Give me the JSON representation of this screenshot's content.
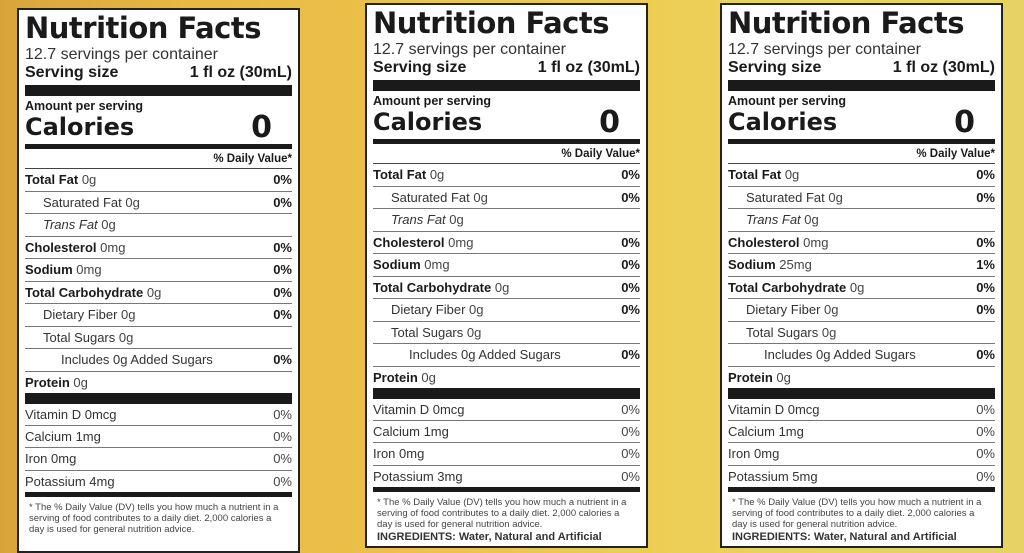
{
  "labels": [
    {
      "title": "Nutrition Facts",
      "servings": "12.7 servings per container",
      "serving_size_label": "Serving size",
      "serving_size_value": "1 fl oz (30mL)",
      "amount_per_serving": "Amount per serving",
      "calories_label": "Calories",
      "calories_value": "0",
      "dv_header": "% Daily Value*",
      "nutrients": [
        {
          "name": "Total Fat",
          "amount": "0g",
          "dv": "0%"
        },
        {
          "name": "Saturated Fat",
          "amount": "0g",
          "dv": "0%"
        },
        {
          "name": "Trans Fat",
          "amount": "0g",
          "dv": ""
        },
        {
          "name": "Cholesterol",
          "amount": "0mg",
          "dv": "0%"
        },
        {
          "name": "Sodium",
          "amount": "0mg",
          "dv": "0%"
        },
        {
          "name": "Total Carbohydrate",
          "amount": "0g",
          "dv": "0%"
        },
        {
          "name": "Dietary Fiber",
          "amount": "0g",
          "dv": "0%"
        },
        {
          "name": "Total Sugars",
          "amount": "0g",
          "dv": ""
        },
        {
          "name": "Includes 0g Added Sugars",
          "amount": "",
          "dv": "0%"
        },
        {
          "name": "Protein",
          "amount": "0g",
          "dv": ""
        }
      ],
      "vitamins": [
        {
          "name": "Vitamin D 0mcg",
          "dv": "0%"
        },
        {
          "name": "Calcium 1mg",
          "dv": "0%"
        },
        {
          "name": "Iron 0mg",
          "dv": "0%"
        },
        {
          "name": "Potassium 4mg",
          "dv": "0%"
        }
      ],
      "footnote": "* The % Daily Value (DV) tells you how much a nutrient in a serving of food contributes to a daily diet. 2,000 calories a day is used for general nutrition advice.",
      "ingredients": ""
    },
    {
      "title": "Nutrition Facts",
      "servings": "12.7 servings per container",
      "serving_size_label": "Serving size",
      "serving_size_value": "1 fl oz (30mL)",
      "amount_per_serving": "Amount per serving",
      "calories_label": "Calories",
      "calories_value": "0",
      "dv_header": "% Daily Value*",
      "nutrients": [
        {
          "name": "Total Fat",
          "amount": "0g",
          "dv": "0%"
        },
        {
          "name": "Saturated Fat",
          "amount": "0g",
          "dv": "0%"
        },
        {
          "name": "Trans Fat",
          "amount": "0g",
          "dv": ""
        },
        {
          "name": "Cholesterol",
          "amount": "0mg",
          "dv": "0%"
        },
        {
          "name": "Sodium",
          "amount": "0mg",
          "dv": "0%"
        },
        {
          "name": "Total Carbohydrate",
          "amount": "0g",
          "dv": "0%"
        },
        {
          "name": "Dietary Fiber",
          "amount": "0g",
          "dv": "0%"
        },
        {
          "name": "Total Sugars",
          "amount": "0g",
          "dv": ""
        },
        {
          "name": "Includes 0g Added Sugars",
          "amount": "",
          "dv": "0%"
        },
        {
          "name": "Protein",
          "amount": "0g",
          "dv": ""
        }
      ],
      "vitamins": [
        {
          "name": "Vitamin D 0mcg",
          "dv": "0%"
        },
        {
          "name": "Calcium 1mg",
          "dv": "0%"
        },
        {
          "name": "Iron 0mg",
          "dv": "0%"
        },
        {
          "name": "Potassium 3mg",
          "dv": "0%"
        }
      ],
      "footnote": "* The % Daily Value (DV) tells you how much a nutrient in a serving of food contributes to a daily diet. 2,000 calories a day is used for general nutrition advice.",
      "ingredients": "INGREDIENTS: Water, Natural and Artificial"
    },
    {
      "title": "Nutrition Facts",
      "servings": "12.7 servings per container",
      "serving_size_label": "Serving size",
      "serving_size_value": "1 fl oz (30mL)",
      "amount_per_serving": "Amount per serving",
      "calories_label": "Calories",
      "calories_value": "0",
      "dv_header": "% Daily Value*",
      "nutrients": [
        {
          "name": "Total Fat",
          "amount": "0g",
          "dv": "0%"
        },
        {
          "name": "Saturated Fat",
          "amount": "0g",
          "dv": "0%"
        },
        {
          "name": "Trans Fat",
          "amount": "0g",
          "dv": ""
        },
        {
          "name": "Cholesterol",
          "amount": "0mg",
          "dv": "0%"
        },
        {
          "name": "Sodium",
          "amount": "25mg",
          "dv": "1%"
        },
        {
          "name": "Total Carbohydrate",
          "amount": "0g",
          "dv": "0%"
        },
        {
          "name": "Dietary Fiber",
          "amount": "0g",
          "dv": "0%"
        },
        {
          "name": "Total Sugars",
          "amount": "0g",
          "dv": ""
        },
        {
          "name": "Includes 0g Added Sugars",
          "amount": "",
          "dv": "0%"
        },
        {
          "name": "Protein",
          "amount": "0g",
          "dv": ""
        }
      ],
      "vitamins": [
        {
          "name": "Vitamin D 0mcg",
          "dv": "0%"
        },
        {
          "name": "Calcium 1mg",
          "dv": "0%"
        },
        {
          "name": "Iron 0mg",
          "dv": "0%"
        },
        {
          "name": "Potassium 5mg",
          "dv": "0%"
        }
      ],
      "footnote": "* The % Daily Value (DV) tells you how much a nutrient in a serving of food contributes to a daily diet. 2,000 calories a day is used for general nutrition advice.",
      "ingredients": "INGREDIENTS: Water, Natural and Artificial"
    }
  ]
}
